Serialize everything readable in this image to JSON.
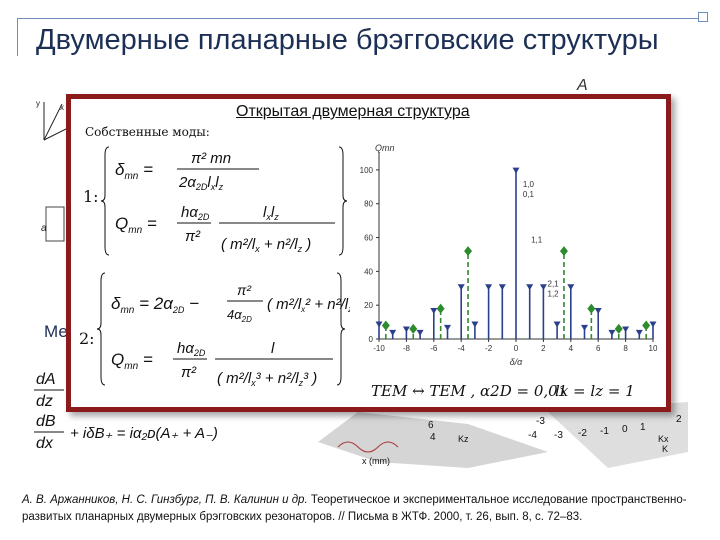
{
  "slide": {
    "title": "Двумерные планарные брэгговские структуры"
  },
  "background": {
    "fragment_me": "Ме",
    "fragment_a0": "a",
    "axis_y": "y",
    "axis_x": "x",
    "label_A": "A",
    "cms_eq_1": "dA/dz ...",
    "cms_eq_2": "dB/dx + iδB+ = iα(A+ + A-)",
    "axis_x_mm": "x (mm)",
    "tick_vals": [
      "2",
      "1",
      "0",
      "-1",
      "-2",
      "-3",
      "-4",
      "-3",
      "-2",
      "-1",
      "0",
      "1",
      "2"
    ],
    "kx_label": "Kx",
    "kz_label": "Kz",
    "k_label": "K"
  },
  "popup": {
    "title": "Открытая двумерная структура",
    "modes_label": "Собственные моды:",
    "eq1_num": "1:",
    "eq2_num": "2:",
    "eq_delta_1": "δmn = π² mn / (2α2D lx lz)",
    "eq_Q_1": "Qmn = hα2D/π² · lx lz / (m²/lx + n²/lz)",
    "eq_delta_2": "δmn = 2α2D − π²/(4α2D) (m²/lx² + n²/lz²)",
    "eq_Q_2": "Qmn = hα2D/π² · l / (m²/lx³ + n²/lz³)",
    "bottom_text": "TEM ↔ TEM , α2D = 0,01",
    "bottom_text_2": "lx = lz = 1"
  },
  "chart_data": {
    "type": "stem",
    "ylabel": "Qmn",
    "xlabel": "δ/α",
    "xlim": [
      -10,
      10
    ],
    "ylim": [
      0,
      110
    ],
    "xticks": [
      -10,
      -8,
      -6,
      -4,
      -2,
      0,
      2,
      4,
      6,
      8,
      10
    ],
    "yticks": [
      0,
      20,
      40,
      60,
      80,
      100
    ],
    "series": [
      {
        "marker": "triangle-down",
        "color": "#2b3f8c",
        "style": "solid",
        "x": [
          -10,
          -9,
          -8,
          -7,
          -6,
          -5,
          -4,
          -3,
          -2,
          -1,
          0,
          1,
          2,
          3,
          4,
          5,
          6,
          7,
          8,
          9,
          10
        ],
        "y": [
          8,
          3,
          5,
          3,
          16,
          6,
          30,
          8,
          30,
          30,
          99,
          30,
          30,
          8,
          30,
          6,
          16,
          3,
          5,
          3,
          8
        ]
      },
      {
        "marker": "diamond",
        "color": "#2e8b2e",
        "style": "dashed",
        "x": [
          -9.5,
          -7.5,
          -5.5,
          -3.5,
          3.5,
          5.5,
          7.5,
          9.5
        ],
        "y": [
          8,
          6,
          18,
          52,
          52,
          18,
          6,
          8
        ]
      }
    ],
    "annotations": [
      {
        "text": "1,0",
        "x": 0.5,
        "y": 90
      },
      {
        "text": "0,1",
        "x": 0.5,
        "y": 84
      },
      {
        "text": "1,1",
        "x": 1.1,
        "y": 57
      },
      {
        "text": "2,1",
        "x": 2.3,
        "y": 31
      },
      {
        "text": "1,2",
        "x": 2.3,
        "y": 25
      }
    ]
  },
  "citation": {
    "authors": "А. В. Аржанников, Н. С. Гинзбург, П. В. Калинин и др.",
    "text": " Теоретическое и экспериментальное исследование пространственно-развитых планарных двумерных брэгговских резонаторов. // Письма в ЖТФ. 2000, т. 26, вып. 8, с. 72–83."
  }
}
